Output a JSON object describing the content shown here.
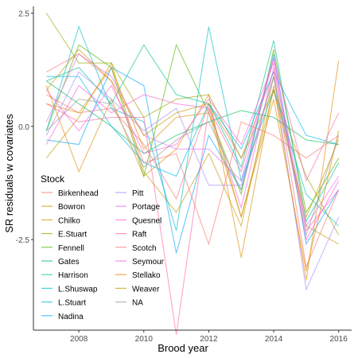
{
  "chart_data": {
    "type": "line",
    "xlabel": "Brood year",
    "ylabel": "SR residuals w covariates",
    "xlim": [
      2006.6,
      2016.4
    ],
    "ylim": [
      -4.5,
      2.65
    ],
    "x_ticks": [
      2008,
      2010,
      2012,
      2014,
      2016
    ],
    "x_tick_labels": [
      "2008",
      "2010",
      "2012",
      "2014",
      "2016"
    ],
    "y_ticks": [
      2.5,
      0.0,
      -2.5
    ],
    "y_tick_labels": [
      "2.5",
      "0.0",
      "-2.5"
    ],
    "grid": false,
    "legend": {
      "title": "Stock",
      "placement": "bottom-left (inside)",
      "columns": 2
    },
    "x": [
      2007,
      2008,
      2009,
      2010,
      2011,
      2012,
      2013,
      2014,
      2015,
      2016
    ],
    "series": [
      {
        "name": "Birkenhead",
        "color": "#F8766D",
        "values": [
          0.7,
          0.3,
          0.4,
          -0.4,
          -1.6,
          0.5,
          -0.7,
          1.2,
          -3.1,
          -1.4
        ]
      },
      {
        "name": "Bowron",
        "color": "#E38900",
        "values": [
          0.9,
          -1.0,
          0.6,
          -1.1,
          -0.5,
          0.7,
          -2.9,
          0.9,
          -3.4,
          1.45
        ]
      },
      {
        "name": "Chilko",
        "color": "#C49A00",
        "values": [
          -0.7,
          0.2,
          1.4,
          -1.0,
          -1.9,
          -0.6,
          -2.2,
          1.1,
          -2.2,
          -2.6
        ]
      },
      {
        "name": "E.Stuart",
        "color": "#99A800",
        "values": [
          2.5,
          1.4,
          1.4,
          0.2,
          0.6,
          0.7,
          -0.7,
          0.8,
          -1.1,
          -2.4
        ]
      },
      {
        "name": "Fennell",
        "color": "#53B400",
        "values": [
          -0.1,
          1.8,
          1.3,
          -1.1,
          1.8,
          0.3,
          -1.5,
          1.7,
          -1.9,
          -0.7
        ]
      },
      {
        "name": "Gates",
        "color": "#00BC56",
        "values": [
          1.0,
          0.5,
          0.0,
          -0.6,
          -0.2,
          0.1,
          0.35,
          0.2,
          -0.3,
          -0.4
        ]
      },
      {
        "name": "Harrison",
        "color": "#00C094",
        "values": [
          1.0,
          1.3,
          0.5,
          1.8,
          0.7,
          0.5,
          -0.9,
          1.9,
          -2.1,
          -0.8
        ]
      },
      {
        "name": "L.Shuswap",
        "color": "#00BFC4",
        "values": [
          -0.1,
          2.2,
          0.4,
          0.1,
          -2.3,
          2.2,
          -1.2,
          0.8,
          -1.5,
          -2.2
        ]
      },
      {
        "name": "L.Stuart",
        "color": "#00B6EB",
        "values": [
          1.1,
          1.1,
          0.0,
          -0.8,
          -1.1,
          0.5,
          -0.5,
          1.2,
          -0.2,
          -0.4
        ]
      },
      {
        "name": "Nadina",
        "color": "#06A4FF",
        "values": [
          -0.3,
          -0.4,
          1.3,
          0.9,
          -2.8,
          -0.2,
          -1.4,
          1.6,
          -2.6,
          -1.4
        ]
      },
      {
        "name": "Pitt",
        "color": "#A58AFF",
        "values": [
          -0.2,
          1.2,
          0.6,
          -0.1,
          0.4,
          -1.3,
          -1.3,
          1.1,
          -3.6,
          -2.0
        ]
      },
      {
        "name": "Portage",
        "color": "#DF70F8",
        "values": [
          0.1,
          1.6,
          1.1,
          -0.2,
          -0.5,
          -0.5,
          -1.2,
          1.5,
          -2.2,
          -1.1
        ]
      },
      {
        "name": "Quesnel",
        "color": "#FB61D7",
        "values": [
          -0.4,
          0.9,
          0.3,
          0.7,
          0.5,
          0.4,
          -1.8,
          1.3,
          -2.3,
          -1.4
        ]
      },
      {
        "name": "Raft",
        "color": "#FF66A8",
        "values": [
          0.5,
          0.1,
          0.2,
          0.2,
          -4.6,
          0.4,
          -1.0,
          1.5,
          -1.2,
          0.3
        ]
      },
      {
        "name": "Scotch",
        "color": "#F8766D",
        "values": [
          1.2,
          1.6,
          1.0,
          -0.8,
          -0.6,
          -2.6,
          0.1,
          -0.2,
          -0.7,
          -0.2
        ]
      },
      {
        "name": "Seymour",
        "color": "#FB61D7",
        "values": [
          0.8,
          -0.1,
          0.9,
          -0.6,
          -0.4,
          0.6,
          -0.4,
          1.4,
          -2.5,
          -1.2
        ]
      },
      {
        "name": "Stellako",
        "color": "#E38900",
        "values": [
          0.5,
          0.3,
          1.3,
          -0.5,
          0.2,
          0.3,
          -2.0,
          0.6,
          -3.2,
          -0.1
        ]
      },
      {
        "name": "Weaver",
        "color": "#C49A00",
        "values": [
          0.8,
          1.7,
          1.0,
          -0.2,
          0.3,
          0.5,
          -2.0,
          0.8,
          -2.0,
          -0.3
        ]
      },
      {
        "name": "NA",
        "color": "#999999",
        "values": [
          -0.1,
          0.6,
          0.5,
          -0.9,
          -0.3,
          0.1,
          -1.4,
          1.1,
          -2.4,
          -0.2
        ]
      }
    ]
  }
}
